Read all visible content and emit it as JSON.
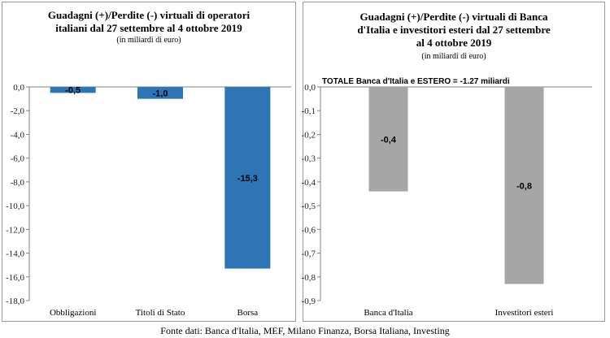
{
  "chart_data": [
    {
      "type": "bar",
      "title": "Guadagni (+)/Perdite (-) virtuali di operatori\nitaliani dal 27 settembre al 4 ottobre 2019",
      "subtitle": "(in miliardi di euro)",
      "categories": [
        "Obbligazioni",
        "Titoli di Stato",
        "Borsa"
      ],
      "values": [
        -0.5,
        -1.0,
        -15.3
      ],
      "data_labels": [
        "-0,5",
        "-1,0",
        "-15,3"
      ],
      "ylim": [
        -18,
        0
      ],
      "yticks": [
        "0,0",
        "-2,0",
        "-4,0",
        "-6,0",
        "-8,0",
        "-10,0",
        "-12,0",
        "-14,0",
        "-16,0",
        "-18,0"
      ],
      "bar_color": "#2e75b6",
      "grid": false
    },
    {
      "type": "bar",
      "title": "Guadagni (+)/Perdite (-) virtuali di Banca\nd'Italia e investitori esteri dal 27 settembre\nal 4 ottobre 2019",
      "subtitle": "(in miliardi di euro)",
      "annotation": "TOTALE Banca d'Italia e ESTERO = -1.27 miliardi",
      "categories": [
        "Banca d'Italia",
        "Investitori esteri"
      ],
      "values": [
        -0.44,
        -0.83
      ],
      "data_labels": [
        "-0,4",
        "-0,8"
      ],
      "ylim": [
        -0.9,
        0
      ],
      "yticks": [
        "0,0",
        "-0,1",
        "-0,2",
        "-0,3",
        "-0,4",
        "-0,5",
        "-0,6",
        "-0,7",
        "-0,8",
        "-0,9"
      ],
      "bar_color": "#a6a6a6",
      "grid": false
    }
  ],
  "source": "Fonte dati: Banca d'Italia, MEF, Milano Finanza, Borsa Italiana, Investing"
}
